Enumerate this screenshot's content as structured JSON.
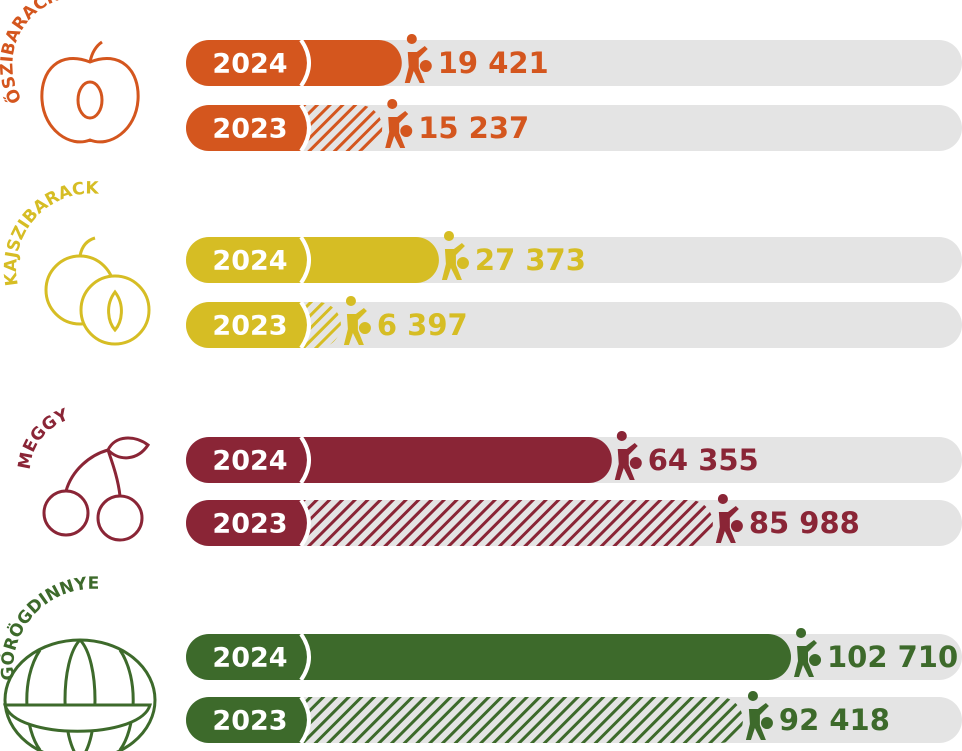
{
  "chart_data": {
    "type": "bar",
    "categories": [
      "ŐSZIBARACK",
      "KAJSZIBARACK",
      "MEGGY",
      "GÖRÖGDINNYE"
    ],
    "colors": [
      "#d4561e",
      "#d6bd24",
      "#8a2536",
      "#3d6a2b"
    ],
    "series": [
      {
        "name": "2024",
        "values": [
          19421,
          27373,
          64355,
          102710
        ],
        "value_labels": [
          "19 421",
          "27 373",
          "64 355",
          "102 710"
        ]
      },
      {
        "name": "2023",
        "values": [
          15237,
          6397,
          85988,
          92418
        ],
        "value_labels": [
          "15 237",
          "6 397",
          "85 988",
          "92 418"
        ]
      }
    ]
  }
}
